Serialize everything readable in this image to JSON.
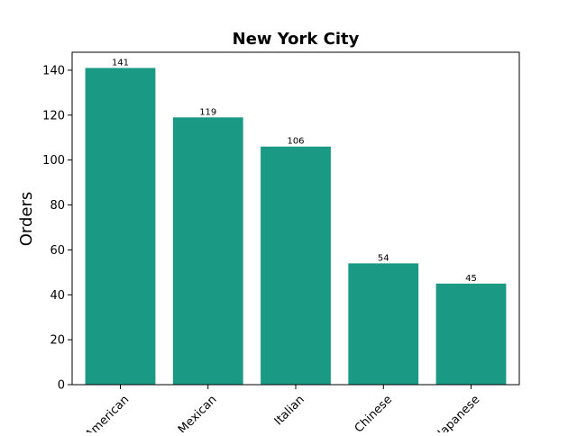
{
  "chart_data": {
    "type": "bar",
    "title": "New York City",
    "xlabel": "",
    "ylabel": "Orders",
    "categories": [
      "American",
      "Mexican",
      "Italian",
      "Chinese",
      "Japanese"
    ],
    "values": [
      141,
      119,
      106,
      54,
      45
    ],
    "data_labels": [
      "141",
      "119",
      "106",
      "54",
      "45"
    ],
    "ylim": [
      0,
      148
    ],
    "yticks": [
      0,
      20,
      40,
      60,
      80,
      100,
      120,
      140
    ],
    "bar_color": "#1a9985",
    "grid": false,
    "legend": "none",
    "xtick_rotation_deg": 45
  }
}
